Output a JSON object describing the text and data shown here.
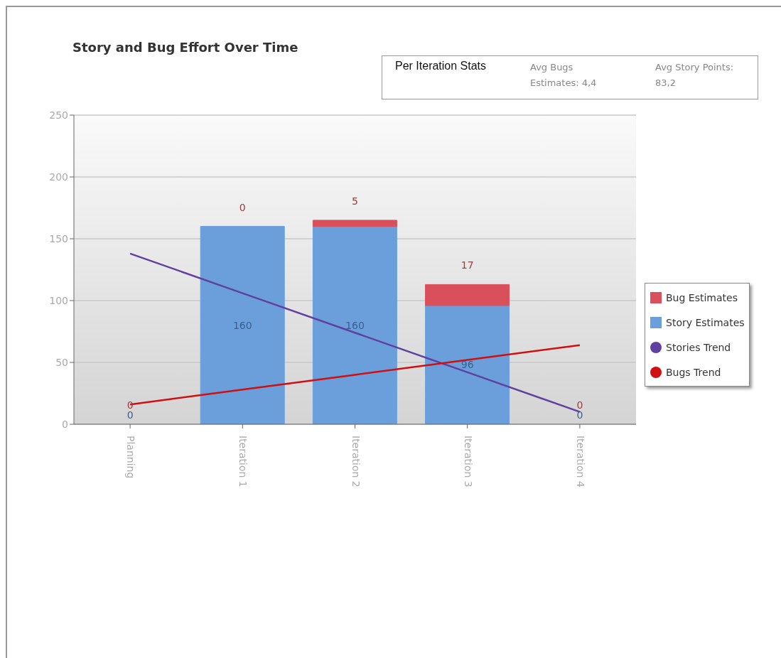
{
  "chart_data": {
    "type": "bar",
    "title": "Story and Bug Effort Over Time",
    "annotations": [
      "Per Iteration Stats",
      "Avg Bugs Estimates: 4,4",
      "Avg Story Points: 83,2"
    ],
    "categories": [
      "Planning",
      "Iteration 1",
      "Iteration 2",
      "Iteration 3",
      "Iteration 4"
    ],
    "stacked": true,
    "series": [
      {
        "name": "Story Estimates",
        "color": "#6a9fdc",
        "values": [
          0,
          160,
          160,
          96,
          0
        ],
        "value_labels": [
          "0",
          "160",
          "160",
          "96",
          "0"
        ]
      },
      {
        "name": "Bug Estimates",
        "color": "#d9505a",
        "values": [
          0,
          0,
          5,
          17,
          0
        ],
        "value_labels": [
          "0",
          "0",
          "5",
          "17",
          "0"
        ]
      },
      {
        "name": "Stories Trend",
        "type": "line",
        "color": "#6040a0",
        "values": [
          138,
          106,
          74,
          42,
          10
        ]
      },
      {
        "name": "Bugs Trend",
        "type": "line",
        "color": "#d01010",
        "values": [
          16,
          28,
          40,
          52,
          64
        ]
      }
    ],
    "ylim": [
      0,
      250
    ],
    "yticks": [
      0,
      50,
      100,
      150,
      200,
      250
    ],
    "grid": "y",
    "legend": "right",
    "marker": "none",
    "line_style": "solid"
  }
}
